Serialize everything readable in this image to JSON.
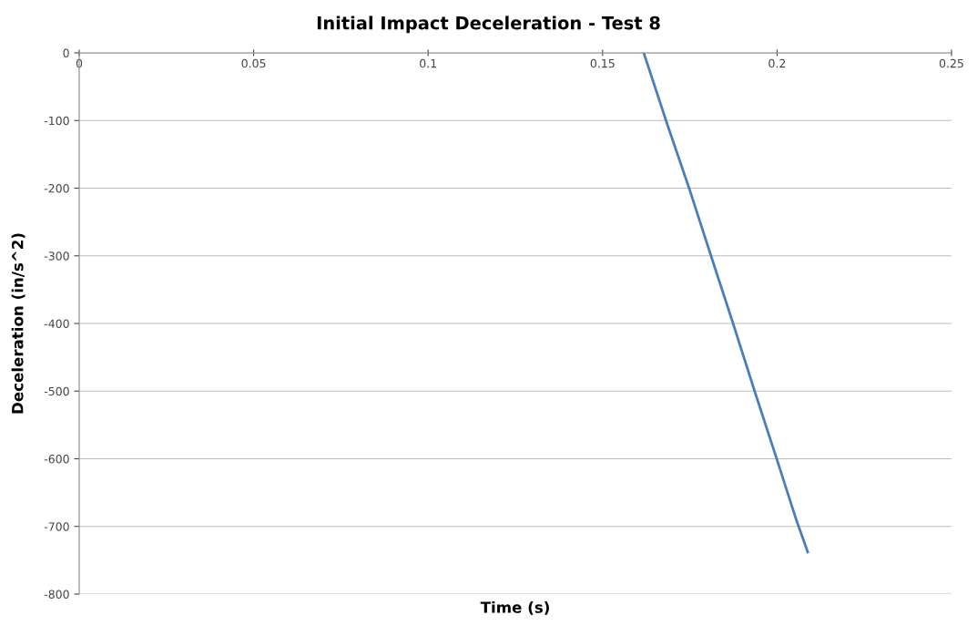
{
  "chart_data": {
    "type": "line",
    "title": "Initial Impact Deceleration - Test 8",
    "xlabel": "Time (s)",
    "ylabel": "Deceleration (in/s^2)",
    "series": [
      {
        "color": "#4a7ebb",
        "x": [
          0.1618,
          0.1685,
          0.1748,
          0.1812,
          0.1874,
          0.1937,
          0.1999,
          0.2055,
          0.2088
        ],
        "values": [
          0,
          -105,
          -200,
          -302,
          -400,
          -502,
          -600,
          -690,
          -738
        ]
      }
    ],
    "xlim": [
      0,
      0.25
    ],
    "xticks": [
      0,
      0.05,
      0.1,
      0.15,
      0.2,
      0.25
    ],
    "ylim": [
      -800,
      0
    ],
    "yticks": [
      -800,
      -700,
      -600,
      -500,
      -400,
      -300,
      -200,
      -100,
      0
    ],
    "grid": "y",
    "legend": false,
    "marker": "none",
    "line_style": "solid"
  }
}
